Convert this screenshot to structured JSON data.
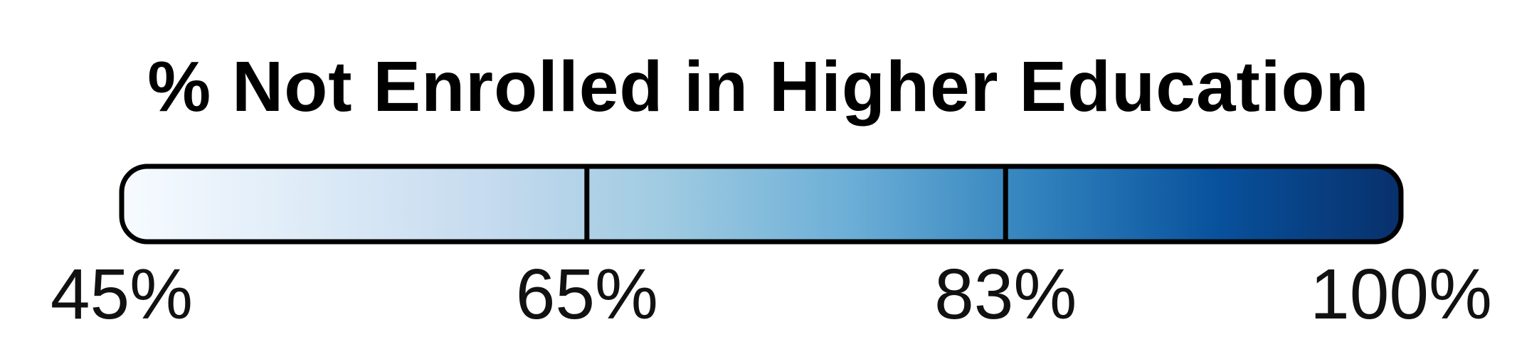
{
  "chart_data": {
    "type": "color-legend",
    "title": "% Not Enrolled in Higher Education",
    "tick_labels": [
      "45%",
      "65%",
      "83%",
      "100%"
    ],
    "breaks": [
      45,
      65,
      83,
      100
    ],
    "range": [
      45,
      100
    ],
    "gradient_colors": [
      "#f7fbff",
      "#deebf7",
      "#c6dbef",
      "#9ecae1",
      "#6baed6",
      "#3182bd",
      "#08519c",
      "#08306b"
    ],
    "outline_color": "#000000"
  }
}
